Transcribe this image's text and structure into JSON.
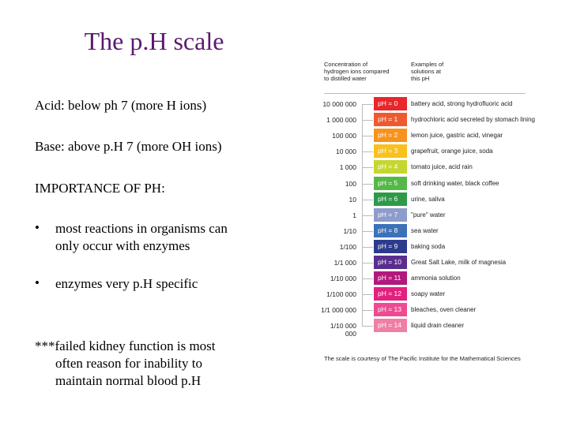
{
  "title": "The p.H scale",
  "acid": {
    "label": "Acid",
    "text": ": below ph 7 (more H ions)"
  },
  "base": {
    "label": "Base",
    "text": ": above p.H 7 (more OH ions)"
  },
  "importance": "IMPORTANCE OF PH:",
  "bullets": [
    {
      "dot": "•",
      "line1": "most reactions in organisms can",
      "line2": "only occur with enzymes"
    },
    {
      "dot": "•",
      "line1": "enzymes very p.H specific"
    }
  ],
  "note": {
    "line1": "***failed kidney function is most",
    "line2": "often reason for inability to",
    "line3": "maintain normal blood p.H"
  },
  "chart": {
    "header_left": [
      "Concentration of",
      "hydrogen ions compared",
      "to distilled water"
    ],
    "header_right": [
      "Examples of",
      "solutions at",
      "this pH"
    ],
    "rows": [
      {
        "conc": "10 000 000",
        "ph": "pH = 0",
        "color": "#e8262b",
        "example": "battery acid, strong hydrofluoric acid"
      },
      {
        "conc": "1 000 000",
        "ph": "pH = 1",
        "color": "#ee5a2f",
        "example": "hydrochloric acid secreted by stomach lining"
      },
      {
        "conc": "100 000",
        "ph": "pH = 2",
        "color": "#f7931d",
        "example": "lemon juice, gastric acid, vinegar"
      },
      {
        "conc": "10 000",
        "ph": "pH = 3",
        "color": "#f9c11c",
        "example": "grapefruit, orange juice, soda"
      },
      {
        "conc": "1 000",
        "ph": "pH = 4",
        "color": "#c5d72e",
        "example": "tomato juice, acid rain"
      },
      {
        "conc": "100",
        "ph": "pH = 5",
        "color": "#55b848",
        "example": "soft drinking water, black coffee"
      },
      {
        "conc": "10",
        "ph": "pH = 6",
        "color": "#2e9a48",
        "example": "urine, saliva"
      },
      {
        "conc": "1",
        "ph": "pH = 7",
        "color": "#8e9ccc",
        "example": "\"pure\" water"
      },
      {
        "conc": "1/10",
        "ph": "pH = 8",
        "color": "#3c71b7",
        "example": "sea water"
      },
      {
        "conc": "1/100",
        "ph": "pH = 9",
        "color": "#2d3b8c",
        "example": "baking soda"
      },
      {
        "conc": "1/1 000",
        "ph": "pH = 10",
        "color": "#5a2e8e",
        "example": "Great Salt Lake, milk of magnesia"
      },
      {
        "conc": "1/10 000",
        "ph": "pH = 11",
        "color": "#b2197c",
        "example": "ammonia solution"
      },
      {
        "conc": "1/100 000",
        "ph": "pH = 12",
        "color": "#e4207e",
        "example": "soapy water"
      },
      {
        "conc": "1/1 000 000",
        "ph": "pH = 13",
        "color": "#ee4a91",
        "example": "bleaches, oven cleaner"
      },
      {
        "conc": "1/10 000 000",
        "ph": "pH = 14",
        "color": "#f07ea5",
        "example": "liquid drain cleaner"
      }
    ],
    "credit": "The scale is courtesy of The Pacific Institute for the Mathematical Sciences"
  }
}
